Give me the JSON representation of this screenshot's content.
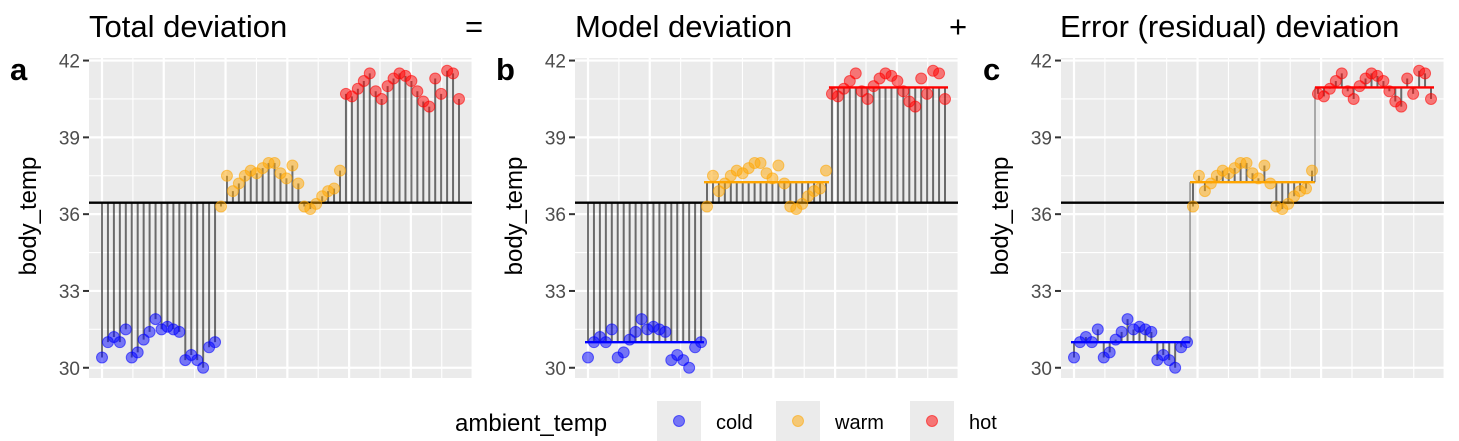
{
  "chart_data": {
    "type": "scatter",
    "titles": {
      "total": "Total deviation",
      "eq": "=",
      "model": "Model deviation",
      "plus": "+",
      "error": "Error (residual) deviation"
    },
    "panel_tags": [
      "a",
      "b",
      "c"
    ],
    "ylabel": "body_temp",
    "yticks": [
      30,
      33,
      36,
      39,
      42
    ],
    "ylim": [
      29.6,
      42.1
    ],
    "grand_mean": 36.45,
    "groups": [
      {
        "name": "cold",
        "color": "#0000ff",
        "mean": 31.0
      },
      {
        "name": "warm",
        "color": "#ffa500",
        "mean": 37.25
      },
      {
        "name": "hot",
        "color": "#ff0000",
        "mean": 40.95
      }
    ],
    "legend": {
      "title": "ambient_temp",
      "entries": [
        "cold",
        "warm",
        "hot"
      ]
    },
    "series": [
      {
        "name": "cold",
        "values": [
          30.4,
          31.0,
          31.2,
          31.0,
          31.5,
          30.4,
          30.6,
          31.1,
          31.4,
          31.9,
          31.5,
          31.6,
          31.5,
          31.4,
          30.3,
          30.5,
          30.3,
          30.0,
          30.8,
          31.0
        ]
      },
      {
        "name": "warm",
        "values": [
          36.3,
          37.5,
          36.9,
          37.2,
          37.5,
          37.7,
          37.6,
          37.8,
          38.0,
          38.0,
          37.6,
          37.4,
          37.9,
          37.2,
          36.3,
          36.2,
          36.4,
          36.7,
          36.9,
          37.0,
          37.7
        ]
      },
      {
        "name": "hot",
        "values": [
          40.7,
          40.6,
          40.9,
          41.2,
          41.5,
          40.8,
          40.5,
          41.0,
          41.3,
          41.5,
          41.4,
          41.2,
          40.8,
          40.4,
          40.2,
          41.3,
          40.7,
          41.6,
          41.5,
          40.5
        ]
      }
    ]
  }
}
